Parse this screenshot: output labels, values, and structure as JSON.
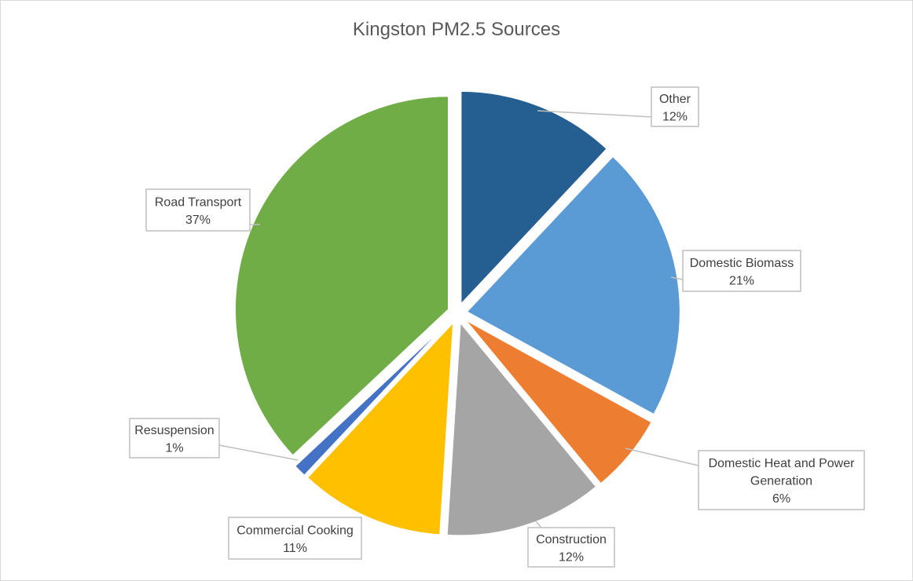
{
  "chart_data": {
    "type": "pie",
    "title": "Kingston PM2.5 Sources",
    "slices": [
      {
        "name": "Other",
        "value": 12,
        "label": "12%",
        "color": "#255e91"
      },
      {
        "name": "Domestic Biomass",
        "value": 21,
        "label": "21%",
        "color": "#5b9bd5"
      },
      {
        "name": "Domestic Heat and Power Generation",
        "label_lines": [
          "Domestic Heat and Power",
          "Generation"
        ],
        "value": 6,
        "label": "6%",
        "color": "#ed7d31"
      },
      {
        "name": "Construction",
        "value": 12,
        "label": "12%",
        "color": "#a5a5a5"
      },
      {
        "name": "Commercial Cooking",
        "value": 11,
        "label": "11%",
        "color": "#ffc000"
      },
      {
        "name": "Resuspension",
        "value": 1,
        "label": "1%",
        "color": "#4472c4"
      },
      {
        "name": "Road Transport",
        "value": 37,
        "label": "37%",
        "color": "#70ad47"
      }
    ],
    "start_angle": "12 o'clock",
    "direction": "clockwise",
    "exploded": true,
    "legend": "none"
  }
}
